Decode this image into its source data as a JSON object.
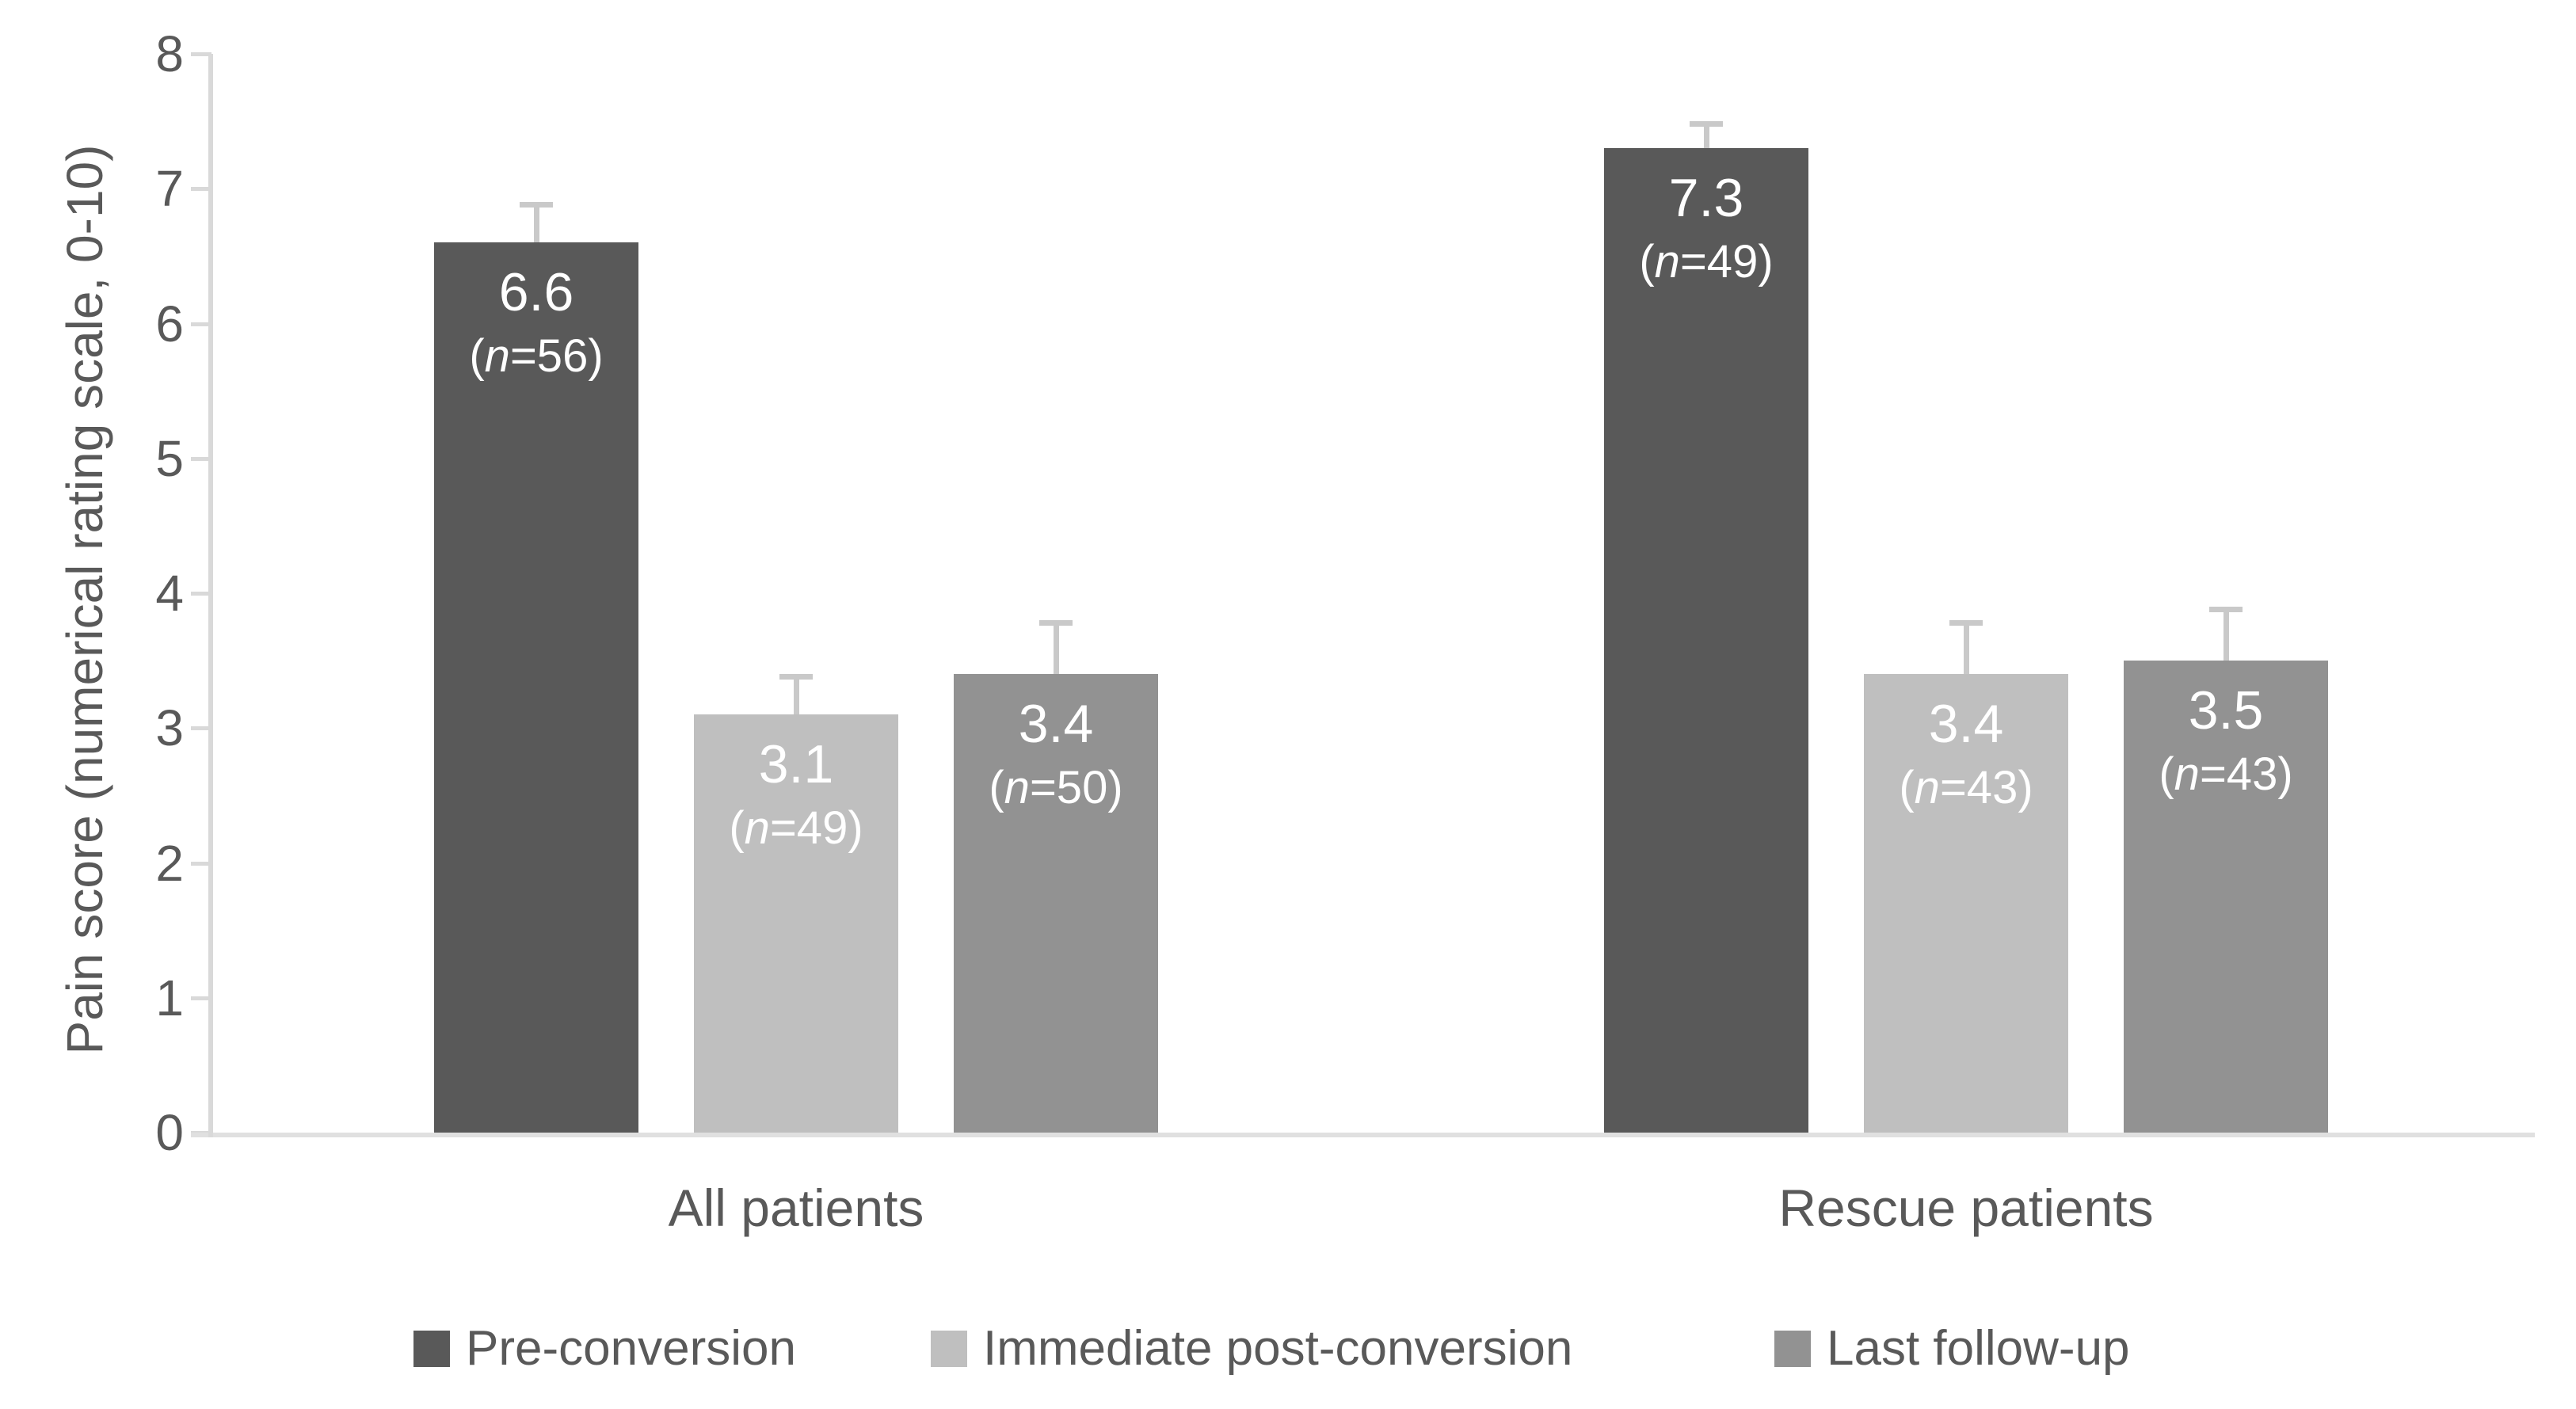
{
  "chart_data": {
    "type": "bar",
    "title": "",
    "ylabel": "Pain score (numerical rating scale, 0-10)",
    "xlabel": "",
    "ylim": [
      0,
      8
    ],
    "yticks": [
      0,
      1,
      2,
      3,
      4,
      5,
      6,
      7,
      8
    ],
    "grid": false,
    "legend_position": "bottom",
    "categories": [
      "All patients",
      "Rescue patients"
    ],
    "series": [
      {
        "name": "Pre-conversion",
        "color": "#595959",
        "values": [
          6.6,
          7.3
        ],
        "n": [
          56,
          49
        ],
        "error_up": [
          0.3,
          0.2
        ],
        "bar_labels": [
          "6.6",
          "7.3"
        ],
        "n_labels": [
          "(n=56)",
          "(n=49)"
        ]
      },
      {
        "name": "Immediate post-conversion",
        "color": "#bfbfbf",
        "values": [
          3.1,
          3.4
        ],
        "n": [
          49,
          43
        ],
        "error_up": [
          0.3,
          0.4
        ],
        "bar_labels": [
          "3.1",
          "3.4"
        ],
        "n_labels": [
          "(n=49)",
          "(n=43)"
        ]
      },
      {
        "name": "Last follow-up",
        "color": "#929292",
        "values": [
          3.4,
          3.5
        ],
        "n": [
          50,
          43
        ],
        "error_up": [
          0.4,
          0.4
        ],
        "bar_labels": [
          "3.4",
          "3.5"
        ],
        "n_labels": [
          "(n=50)",
          "(n=43)"
        ]
      }
    ],
    "error_bar_color": "#c9c9c9",
    "axis_color": "#d9d9d9",
    "text_color": "#595959",
    "bar_label_color": "#ffffff"
  }
}
